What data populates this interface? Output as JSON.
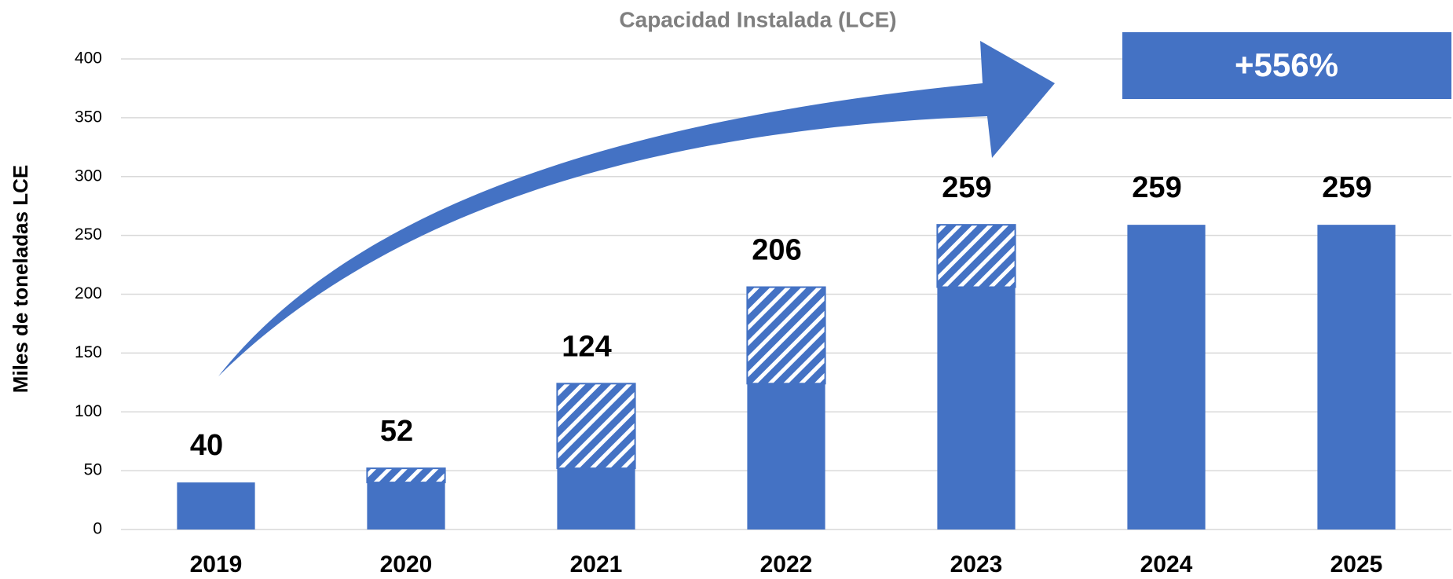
{
  "chart_data": {
    "type": "stacked_bar",
    "title": "Capacidad Instalada (LCE)",
    "y_label": "Miles de toneladas LCE",
    "categories": [
      "2019",
      "2020",
      "2021",
      "2022",
      "2023",
      "2024",
      "2025"
    ],
    "series": [
      {
        "color": "#4472c4",
        "pattern": "solid",
        "values": [
          40,
          40,
          52,
          124,
          206,
          259,
          259
        ]
      },
      {
        "color": "#4472c4",
        "pattern": "hatch",
        "values": [
          0,
          12,
          72,
          82,
          53,
          0,
          0
        ]
      }
    ],
    "totals": [
      40,
      52,
      124,
      206,
      259,
      259,
      259
    ],
    "annotation": "+556%",
    "ylim": [
      0,
      400
    ],
    "yticks": [
      0,
      50,
      100,
      150,
      200,
      250,
      300,
      350,
      400
    ],
    "grid": true
  }
}
